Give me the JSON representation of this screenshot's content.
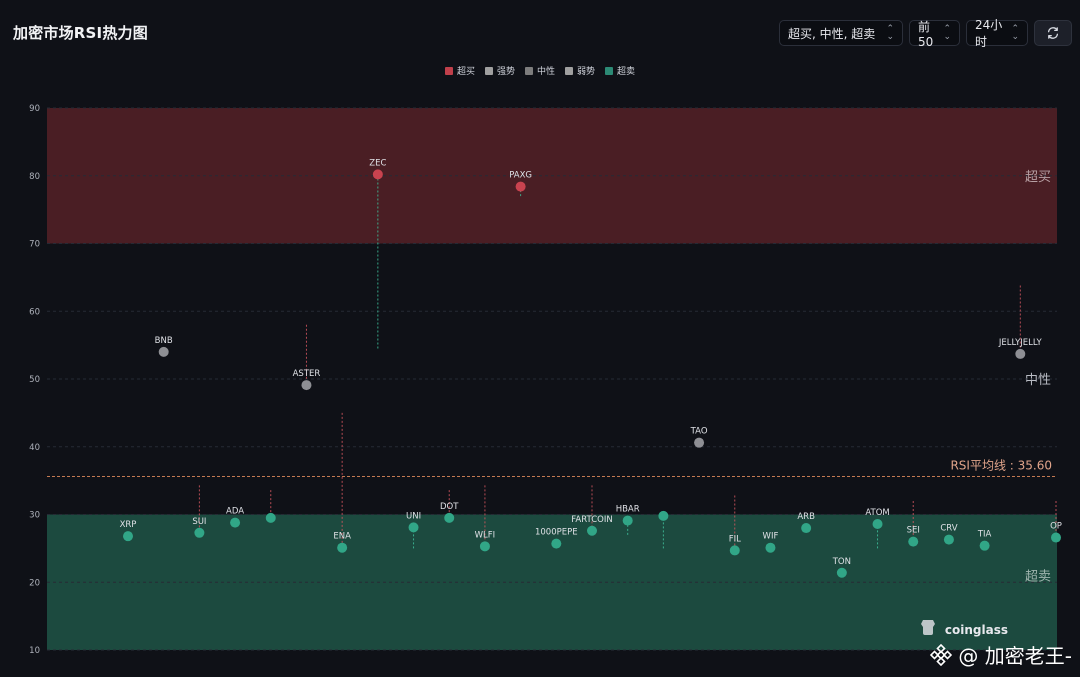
{
  "header": {
    "title": "加密市场RSI热力图",
    "filter_value": "超买, 中性, 超卖",
    "top_value": "前50",
    "time_value": "24小时"
  },
  "legend": [
    {
      "label": "超买",
      "color": "#c0404b"
    },
    {
      "label": "强势",
      "color": "#a0a0a0"
    },
    {
      "label": "中性",
      "color": "#7d7d7d"
    },
    {
      "label": "弱势",
      "color": "#a0a0a0"
    },
    {
      "label": "超卖",
      "color": "#2c8a75"
    }
  ],
  "watermark": {
    "brand": "coinglass",
    "author": "@ 加密老王-"
  },
  "chart_data": {
    "type": "scatter",
    "title": "加密市场RSI热力图",
    "ylim": [
      10,
      90
    ],
    "yticks": [
      10,
      20,
      30,
      40,
      50,
      60,
      70,
      80,
      90
    ],
    "grid": true,
    "zones": [
      {
        "name": "超买",
        "from": 70,
        "to": 90,
        "color": "#4a1e24"
      },
      {
        "name": "中性",
        "from": 30,
        "to": 70,
        "color": ""
      },
      {
        "name": "超卖",
        "from": 10,
        "to": 30,
        "color": "#1c4a3f"
      }
    ],
    "average_line": {
      "label": "RSI平均线 : 35.60",
      "value": 35.6
    },
    "points": [
      {
        "name": "XRP",
        "rsi": 26.8,
        "status": "超卖"
      },
      {
        "name": "BNB",
        "rsi": 54.0,
        "status": "中性"
      },
      {
        "name": "SUI",
        "rsi": 27.3,
        "status": "超卖",
        "prev": 34.3
      },
      {
        "name": "ADA",
        "rsi": 28.8,
        "status": "超卖"
      },
      {
        "name": "",
        "rsi": 29.5,
        "status": "超卖",
        "prev": 33.6
      },
      {
        "name": "ASTER",
        "rsi": 49.1,
        "status": "中性",
        "prev": 58.0
      },
      {
        "name": "ENA",
        "rsi": 25.1,
        "status": "超卖",
        "prev": 45.0
      },
      {
        "name": "ZEC",
        "rsi": 80.2,
        "status": "超买",
        "prev": 54.5
      },
      {
        "name": "UNI",
        "rsi": 28.1,
        "status": "超卖",
        "prev": 25.0
      },
      {
        "name": "DOT",
        "rsi": 29.5,
        "status": "超卖",
        "prev": 33.6
      },
      {
        "name": "WLFI",
        "rsi": 25.3,
        "status": "超卖",
        "prev": 34.3
      },
      {
        "name": "PAXG",
        "rsi": 78.4,
        "status": "超买",
        "prev": 77.0
      },
      {
        "name": "1000PEPE",
        "rsi": 25.7,
        "status": "超卖"
      },
      {
        "name": "FARTCOIN",
        "rsi": 27.6,
        "status": "超卖",
        "prev": 34.3
      },
      {
        "name": "HBAR",
        "rsi": 29.1,
        "status": "超卖",
        "prev": 27.0
      },
      {
        "name": "",
        "rsi": 29.8,
        "status": "超卖",
        "prev": 25.0
      },
      {
        "name": "TAO",
        "rsi": 40.6,
        "status": "中性"
      },
      {
        "name": "FIL",
        "rsi": 24.7,
        "status": "超卖",
        "prev": 32.8
      },
      {
        "name": "WIF",
        "rsi": 25.1,
        "status": "超卖"
      },
      {
        "name": "ARB",
        "rsi": 28.0,
        "status": "超卖"
      },
      {
        "name": "TON",
        "rsi": 21.4,
        "status": "超卖"
      },
      {
        "name": "ATOM",
        "rsi": 28.6,
        "status": "超卖",
        "prev": 25.0
      },
      {
        "name": "SEI",
        "rsi": 26.0,
        "status": "超卖",
        "prev": 32.0
      },
      {
        "name": "CRV",
        "rsi": 26.3,
        "status": "超卖"
      },
      {
        "name": "TIA",
        "rsi": 25.4,
        "status": "超卖"
      },
      {
        "name": "JELLYJELLY",
        "rsi": 53.7,
        "status": "中性",
        "prev": 63.8
      },
      {
        "name": "OP",
        "rsi": 26.6,
        "status": "超卖",
        "prev": 32.0
      }
    ]
  }
}
